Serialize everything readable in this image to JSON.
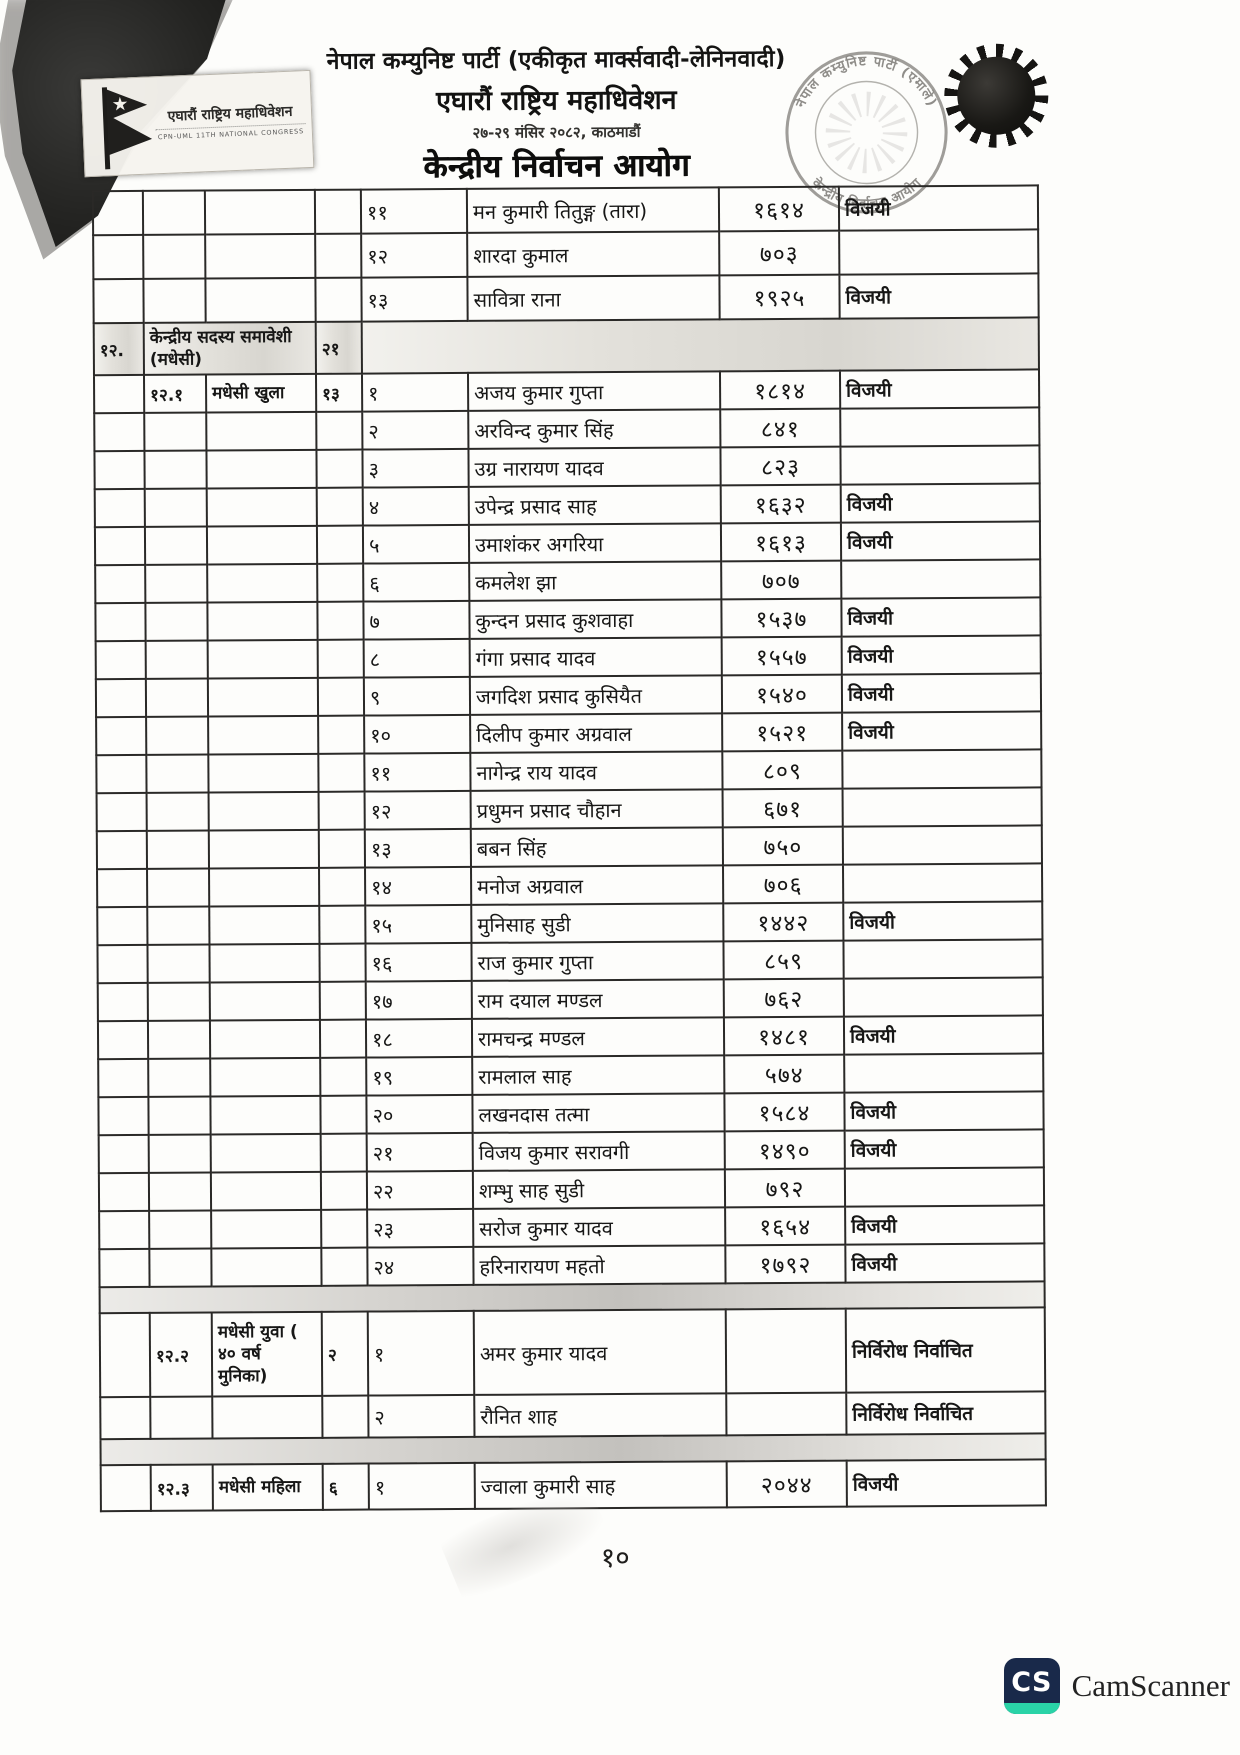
{
  "document": {
    "header": {
      "party": "नेपाल कम्युनिष्ट पार्टी (एकीकृत मार्क्सवादी-लेनिनवादी)",
      "congress": "एघारौं राष्ट्रिय महाधिवेशन",
      "date_venue": "२७-२९ मंसिर २०८२, काठमाडौं",
      "commission": "केन्द्रीय निर्वाचन आयोग"
    },
    "logo": {
      "icon": "nepal-flag-icon",
      "title": "एघारौं राष्ट्रिय महाधिवेशन",
      "subtitle": "CPN-UML 11TH NATIONAL CONGRESS"
    },
    "stamp": {
      "icon": "round-seal-icon",
      "arc_top": "नेपाल कम्युनिष्ट पार्टी (एमाले)",
      "arc_bottom": "केन्द्रीय निर्वाचन आयोग"
    },
    "emblem_icon": "party-sun-emblem-icon"
  },
  "table": {
    "rows": [
      {
        "type": "cont",
        "sn1": "",
        "sn2": "",
        "category": "",
        "seats": "",
        "idx": "११",
        "name": "मन कुमारी तितुङ्ग (तारा)",
        "votes": "१६१४",
        "result": "विजयी"
      },
      {
        "type": "cont",
        "sn1": "",
        "sn2": "",
        "category": "",
        "seats": "",
        "idx": "१२",
        "name": "शारदा कुमाल",
        "votes": "७०३",
        "result": ""
      },
      {
        "type": "cont",
        "sn1": "",
        "sn2": "",
        "category": "",
        "seats": "",
        "idx": "१३",
        "name": "सावित्रा राना",
        "votes": "१९२५",
        "result": "विजयी"
      },
      {
        "type": "section",
        "sn1": "१२.",
        "category": "केन्द्रीय सदस्य समावेशी (मधेसी)",
        "seats": "२१"
      },
      {
        "type": "data",
        "sn1": "",
        "sn2": "१२.१",
        "category": "मधेसी खुला",
        "seats": "१३",
        "idx": "१",
        "name": "अजय कुमार गुप्ता",
        "votes": "१८१४",
        "result": "विजयी"
      },
      {
        "type": "data",
        "sn1": "",
        "sn2": "",
        "category": "",
        "seats": "",
        "idx": "२",
        "name": "अरविन्द कुमार सिंह",
        "votes": "८४१",
        "result": ""
      },
      {
        "type": "data",
        "sn1": "",
        "sn2": "",
        "category": "",
        "seats": "",
        "idx": "३",
        "name": "उग्र नारायण यादव",
        "votes": "८२३",
        "result": ""
      },
      {
        "type": "data",
        "sn1": "",
        "sn2": "",
        "category": "",
        "seats": "",
        "idx": "४",
        "name": "उपेन्द्र प्रसाद साह",
        "votes": "१६३२",
        "result": "विजयी"
      },
      {
        "type": "data",
        "sn1": "",
        "sn2": "",
        "category": "",
        "seats": "",
        "idx": "५",
        "name": "उमाशंकर अगरिया",
        "votes": "१६१३",
        "result": "विजयी"
      },
      {
        "type": "data",
        "sn1": "",
        "sn2": "",
        "category": "",
        "seats": "",
        "idx": "६",
        "name": "कमलेश झा",
        "votes": "७०७",
        "result": ""
      },
      {
        "type": "data",
        "sn1": "",
        "sn2": "",
        "category": "",
        "seats": "",
        "idx": "७",
        "name": "कुन्दन प्रसाद कुशवाहा",
        "votes": "१५३७",
        "result": "विजयी"
      },
      {
        "type": "data",
        "sn1": "",
        "sn2": "",
        "category": "",
        "seats": "",
        "idx": "८",
        "name": "गंगा प्रसाद यादव",
        "votes": "१५५७",
        "result": "विजयी"
      },
      {
        "type": "data",
        "sn1": "",
        "sn2": "",
        "category": "",
        "seats": "",
        "idx": "९",
        "name": "जगदिश प्रसाद कुसियैत",
        "votes": "१५४०",
        "result": "विजयी"
      },
      {
        "type": "data",
        "sn1": "",
        "sn2": "",
        "category": "",
        "seats": "",
        "idx": "१०",
        "name": "दिलीप कुमार अग्रवाल",
        "votes": "१५२१",
        "result": "विजयी"
      },
      {
        "type": "data",
        "sn1": "",
        "sn2": "",
        "category": "",
        "seats": "",
        "idx": "११",
        "name": "नागेन्द्र राय यादव",
        "votes": "८०९",
        "result": ""
      },
      {
        "type": "data",
        "sn1": "",
        "sn2": "",
        "category": "",
        "seats": "",
        "idx": "१२",
        "name": "प्रधुमन प्रसाद चौहान",
        "votes": "६७१",
        "result": ""
      },
      {
        "type": "data",
        "sn1": "",
        "sn2": "",
        "category": "",
        "seats": "",
        "idx": "१३",
        "name": "बबन सिंह",
        "votes": "७५०",
        "result": ""
      },
      {
        "type": "data",
        "sn1": "",
        "sn2": "",
        "category": "",
        "seats": "",
        "idx": "१४",
        "name": "मनोज अग्रवाल",
        "votes": "७०६",
        "result": ""
      },
      {
        "type": "data",
        "sn1": "",
        "sn2": "",
        "category": "",
        "seats": "",
        "idx": "१५",
        "name": "मुनिसाह सुडी",
        "votes": "१४४२",
        "result": "विजयी"
      },
      {
        "type": "data",
        "sn1": "",
        "sn2": "",
        "category": "",
        "seats": "",
        "idx": "१६",
        "name": "राज कुमार गुप्ता",
        "votes": "८५९",
        "result": ""
      },
      {
        "type": "data",
        "sn1": "",
        "sn2": "",
        "category": "",
        "seats": "",
        "idx": "१७",
        "name": "राम दयाल मण्डल",
        "votes": "७६२",
        "result": ""
      },
      {
        "type": "data",
        "sn1": "",
        "sn2": "",
        "category": "",
        "seats": "",
        "idx": "१८",
        "name": "रामचन्द्र मण्डल",
        "votes": "१४८१",
        "result": "विजयी"
      },
      {
        "type": "data",
        "sn1": "",
        "sn2": "",
        "category": "",
        "seats": "",
        "idx": "१९",
        "name": "रामलाल साह",
        "votes": "५७४",
        "result": ""
      },
      {
        "type": "data",
        "sn1": "",
        "sn2": "",
        "category": "",
        "seats": "",
        "idx": "२०",
        "name": "लखनदास तत्मा",
        "votes": "१५८४",
        "result": "विजयी"
      },
      {
        "type": "data",
        "sn1": "",
        "sn2": "",
        "category": "",
        "seats": "",
        "idx": "२१",
        "name": "विजय कुमार सरावगी",
        "votes": "१४९०",
        "result": "विजयी"
      },
      {
        "type": "data",
        "sn1": "",
        "sn2": "",
        "category": "",
        "seats": "",
        "idx": "२२",
        "name": "शम्भु साह सुडी",
        "votes": "७९२",
        "result": ""
      },
      {
        "type": "data",
        "sn1": "",
        "sn2": "",
        "category": "",
        "seats": "",
        "idx": "२३",
        "name": "सरोज कुमार यादव",
        "votes": "१६५४",
        "result": "विजयी"
      },
      {
        "type": "data",
        "sn1": "",
        "sn2": "",
        "category": "",
        "seats": "",
        "idx": "२४",
        "name": "हरिनारायण महतो",
        "votes": "१७९२",
        "result": "विजयी"
      },
      {
        "type": "spacer"
      },
      {
        "type": "group-tall",
        "sn1": "",
        "sn2": "१२.२",
        "category": "मधेसी युवा ( ४० वर्ष मुनिका)",
        "seats": "२",
        "idx": "१",
        "name": "अमर कुमार यादव",
        "votes": "",
        "result": "निर्विरोध निर्वाचित"
      },
      {
        "type": "data-lg",
        "sn1": "",
        "sn2": "",
        "category": "",
        "seats": "",
        "idx": "२",
        "name": "रौनित शाह",
        "votes": "",
        "result": "निर्विरोध निर्वाचित"
      },
      {
        "type": "spacer"
      },
      {
        "type": "group",
        "sn1": "",
        "sn2": "१२.३",
        "category": "मधेसी महिला",
        "seats": "६",
        "idx": "१",
        "name": "ज्वाला कुमारी साह",
        "votes": "२०४४",
        "result": "विजयी"
      }
    ]
  },
  "footer": {
    "page_number": "१०"
  },
  "watermark": {
    "icon_text": "CS",
    "label": "CamScanner"
  },
  "colors": {
    "cs_navy": "#19294A",
    "cs_teal": "#2AD3A7",
    "ink": "#1C1C1C",
    "seal_gray": "#8F8D89"
  }
}
